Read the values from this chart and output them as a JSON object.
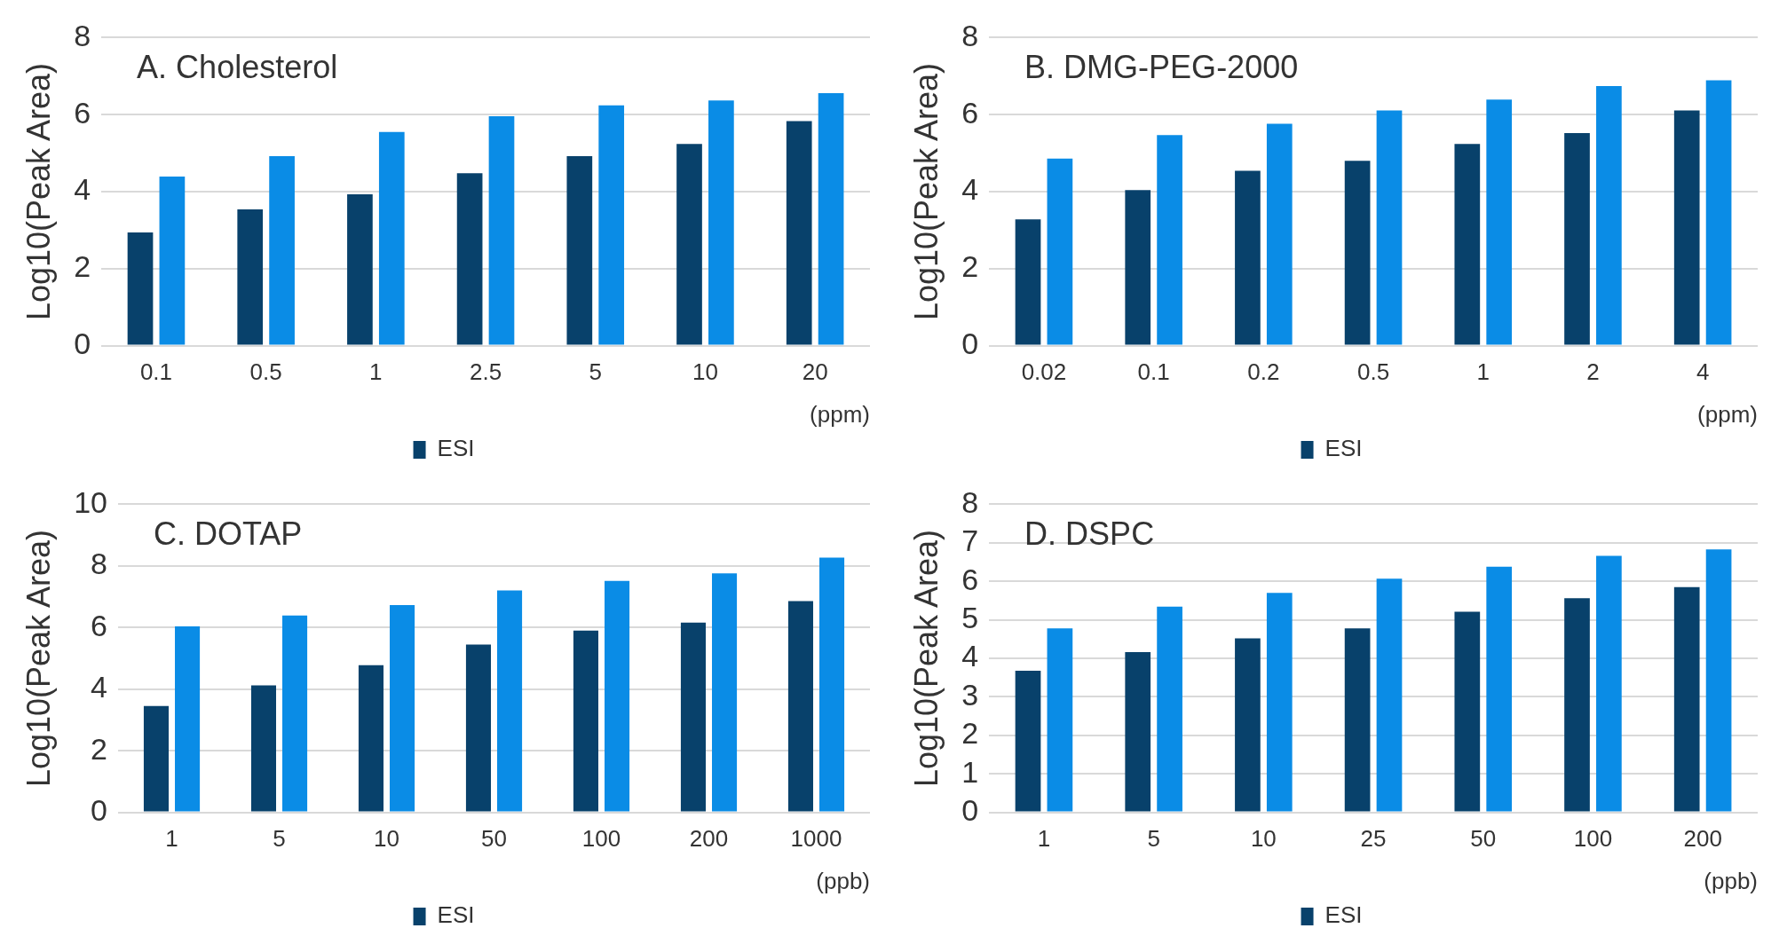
{
  "chart_data": [
    {
      "type": "bar",
      "title": "A. Cholesterol",
      "ylabel": "Log10(Peak Area)",
      "xlabel": "(ppm)",
      "categories": [
        "0.1",
        "0.5",
        "1",
        "2.5",
        "5",
        "10",
        "20"
      ],
      "series": [
        {
          "name": "ESI",
          "color": "#08416b",
          "values": [
            2.94,
            3.54,
            3.93,
            4.48,
            4.92,
            5.24,
            5.83
          ]
        },
        {
          "color": "#0a8ce6",
          "values": [
            4.39,
            4.92,
            5.55,
            5.96,
            6.24,
            6.37,
            6.56
          ]
        }
      ],
      "ylim": [
        0,
        8
      ],
      "yticks": [
        0,
        2,
        4,
        6,
        8
      ],
      "grid": "y",
      "legend": "bottom"
    },
    {
      "type": "bar",
      "title": "B. DMG-PEG-2000",
      "ylabel": "Log10(Peak Area)",
      "xlabel": "(ppm)",
      "categories": [
        "0.02",
        "0.1",
        "0.2",
        "0.5",
        "1",
        "2",
        "4"
      ],
      "series": [
        {
          "name": "ESI",
          "color": "#08416b",
          "values": [
            3.28,
            4.04,
            4.54,
            4.8,
            5.24,
            5.52,
            6.11
          ]
        },
        {
          "color": "#0a8ce6",
          "values": [
            4.86,
            5.47,
            5.76,
            6.11,
            6.39,
            6.74,
            6.89
          ]
        }
      ],
      "ylim": [
        0,
        8
      ],
      "yticks": [
        0,
        2,
        4,
        6,
        8
      ],
      "grid": "y",
      "legend": "bottom"
    },
    {
      "type": "bar",
      "title": "C. DOTAP",
      "ylabel": "Log10(Peak Area)",
      "xlabel": "(ppb)",
      "categories": [
        "1",
        "5",
        "10",
        "50",
        "100",
        "200",
        "1000"
      ],
      "series": [
        {
          "name": "ESI",
          "color": "#08416b",
          "values": [
            3.45,
            4.12,
            4.78,
            5.45,
            5.9,
            6.16,
            6.86
          ]
        },
        {
          "color": "#0a8ce6",
          "values": [
            6.04,
            6.39,
            6.73,
            7.2,
            7.51,
            7.76,
            8.27
          ]
        }
      ],
      "ylim": [
        0,
        10
      ],
      "yticks": [
        0,
        2,
        4,
        6,
        8,
        10
      ],
      "grid": "y",
      "legend": "bottom"
    },
    {
      "type": "bar",
      "title": "D. DSPC",
      "ylabel": "Log10(Peak Area)",
      "xlabel": "(ppb)",
      "categories": [
        "1",
        "5",
        "10",
        "25",
        "50",
        "100",
        "200"
      ],
      "series": [
        {
          "name": "ESI",
          "color": "#08416b",
          "values": [
            3.68,
            4.16,
            4.52,
            4.78,
            5.21,
            5.56,
            5.85
          ]
        },
        {
          "color": "#0a8ce6",
          "values": [
            4.78,
            5.34,
            5.7,
            6.07,
            6.38,
            6.66,
            6.83
          ]
        }
      ],
      "ylim": [
        0,
        8
      ],
      "yticks": [
        0,
        1,
        2,
        3,
        4,
        5,
        6,
        7,
        8
      ],
      "grid": "y",
      "legend": "bottom"
    }
  ]
}
